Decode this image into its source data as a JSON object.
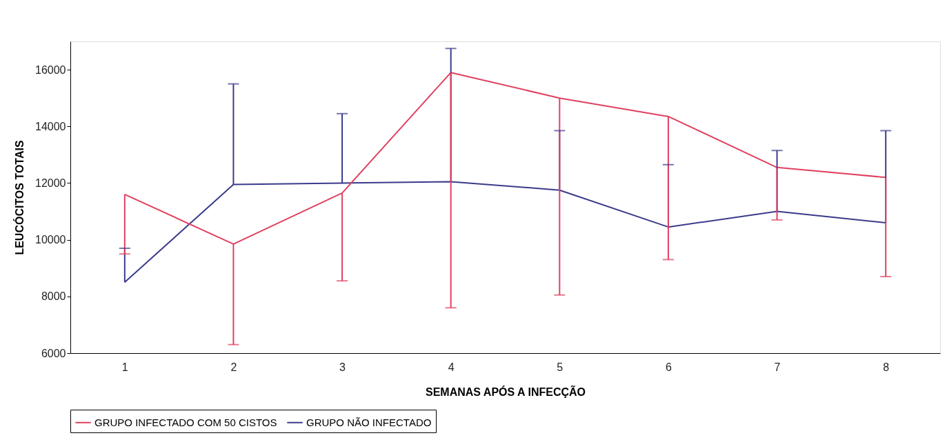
{
  "chart_data": {
    "type": "line",
    "xlabel": "SEMANAS APÓS A INFECÇÃO",
    "ylabel": "LEUCÓCITOS TOTAIS",
    "categories": [
      "1",
      "2",
      "3",
      "4",
      "5",
      "6",
      "7",
      "8"
    ],
    "ylim": [
      6000,
      17000
    ],
    "yticks": [
      6000,
      8000,
      10000,
      12000,
      14000,
      16000
    ],
    "grid": false,
    "legend": "bottom",
    "marker": "none",
    "line_style": "solid",
    "series": [
      {
        "name": "GRUPO INFECTADO COM 50 CISTOS",
        "color": "#e0405f",
        "values": [
          11600,
          9850,
          11650,
          15900,
          15000,
          14350,
          12550,
          12200
        ],
        "errors": [
          [
            9500,
            11600
          ],
          [
            6300,
            9850
          ],
          [
            8550,
            11650
          ],
          [
            7600,
            15900
          ],
          [
            8050,
            15000
          ],
          [
            9300,
            14350
          ],
          [
            10700,
            12550
          ],
          [
            8700,
            12200
          ]
        ]
      },
      {
        "name": "GRUPO NÃO INFECTADO",
        "color": "#3a3a8c",
        "values": [
          8500,
          11950,
          12000,
          12050,
          11750,
          10450,
          11000,
          10600
        ],
        "errors": [
          [
            8500,
            9700
          ],
          [
            11950,
            15500
          ],
          [
            12000,
            14450
          ],
          [
            12050,
            16750
          ],
          [
            11750,
            13850
          ],
          [
            10450,
            12650
          ],
          [
            11000,
            13150
          ],
          [
            10600,
            13850
          ]
        ]
      }
    ]
  }
}
